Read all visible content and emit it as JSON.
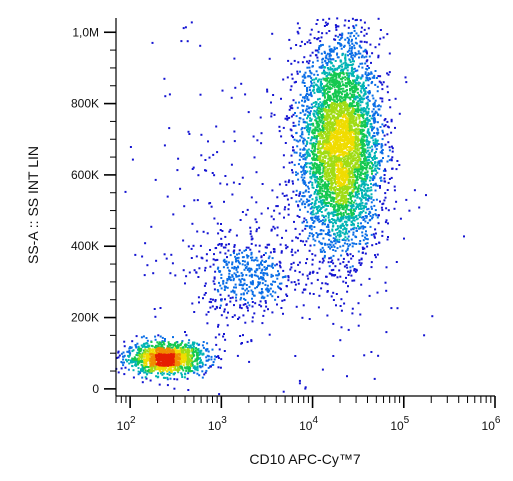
{
  "chart_data": {
    "type": "scatter",
    "subtype": "flow-cytometry-density-dot-plot",
    "xlabel": "CD10 APC-Cy™7",
    "ylabel": "SS-A :: SS INT LIN",
    "x_scale": "log",
    "xlim": [
      70,
      1000000
    ],
    "x_ticks": [
      {
        "value": 100,
        "base": "10",
        "exp": "2"
      },
      {
        "value": 1000,
        "base": "10",
        "exp": "3"
      },
      {
        "value": 10000,
        "base": "10",
        "exp": "4"
      },
      {
        "value": 100000,
        "base": "10",
        "exp": "5"
      },
      {
        "value": 1000000,
        "base": "10",
        "exp": "6"
      }
    ],
    "y_scale": "linear",
    "ylim": [
      -20000,
      1040000
    ],
    "y_ticks": [
      {
        "value": 0,
        "label": "0"
      },
      {
        "value": 200000,
        "label": "200K"
      },
      {
        "value": 400000,
        "label": "400K"
      },
      {
        "value": 600000,
        "label": "600K"
      },
      {
        "value": 800000,
        "label": "800K"
      },
      {
        "value": 1000000,
        "label": "1,0M"
      }
    ],
    "colormap": [
      "#1414d2",
      "#0a6ee6",
      "#00b4b4",
      "#14c850",
      "#a0dc14",
      "#f0dc00",
      "#f08c00",
      "#e61e00"
    ],
    "populations": [
      {
        "x_center": 250,
        "y_center": 85000,
        "x_spread_log10": 0.22,
        "y_spread": 22000,
        "count": 1300
      },
      {
        "x_center": 2000,
        "y_center": 310000,
        "x_spread_log10": 0.28,
        "y_spread": 55000,
        "count": 450
      },
      {
        "x_center": 20000,
        "y_center": 680000,
        "x_spread_log10": 0.22,
        "y_spread": 150000,
        "count": 4500
      },
      {
        "x_center": 3000,
        "y_center": 450000,
        "x_spread_log10": 0.8,
        "y_spread": 300000,
        "count": 380
      }
    ]
  }
}
